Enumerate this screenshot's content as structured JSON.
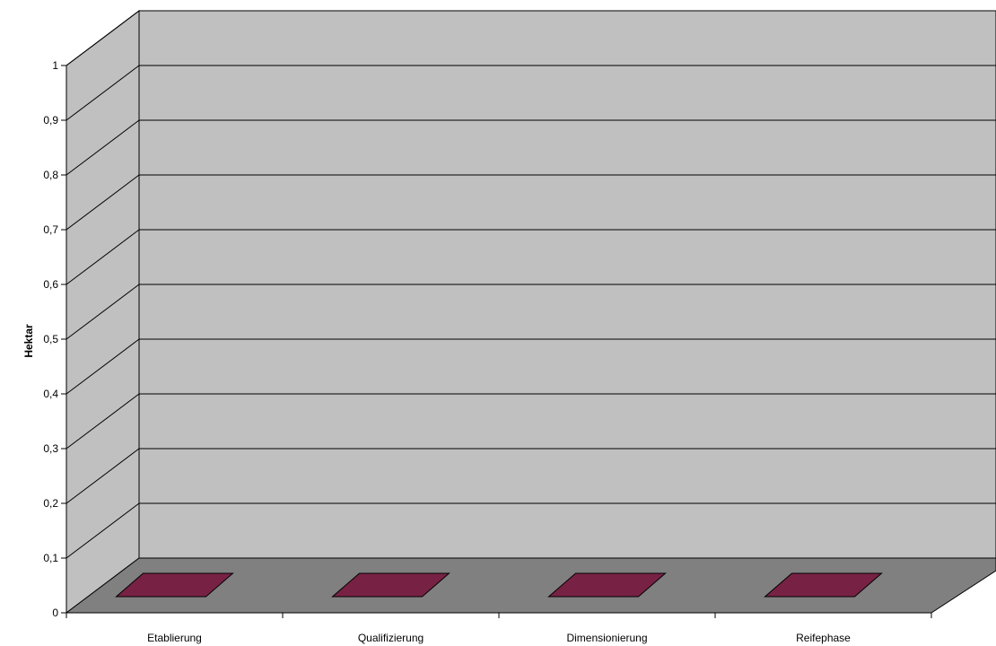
{
  "chart_data": {
    "type": "bar",
    "style": "3d-column",
    "categories": [
      "Etablierung",
      "Qualifizierung",
      "Dimensionierung",
      "Reifephase"
    ],
    "series": [
      {
        "values": [
          0,
          0,
          0,
          0
        ],
        "color": "#772244"
      }
    ],
    "ylabel": "Hektar",
    "xlabel": "",
    "title": "",
    "ylim": [
      0,
      1
    ],
    "yticks": [
      0,
      0.1,
      0.2,
      0.3,
      0.4,
      0.5,
      0.6,
      0.7,
      0.8,
      0.9,
      1
    ],
    "ytick_labels": [
      "0",
      "0,1",
      "0,2",
      "0,3",
      "0,4",
      "0,5",
      "0,6",
      "0,7",
      "0,8",
      "0,9",
      "1"
    ],
    "grid": true,
    "legend": "none",
    "colors": {
      "wall": "#c0c0c0",
      "floor": "#808080",
      "bar": "#772244",
      "gridline": "#000000"
    }
  }
}
